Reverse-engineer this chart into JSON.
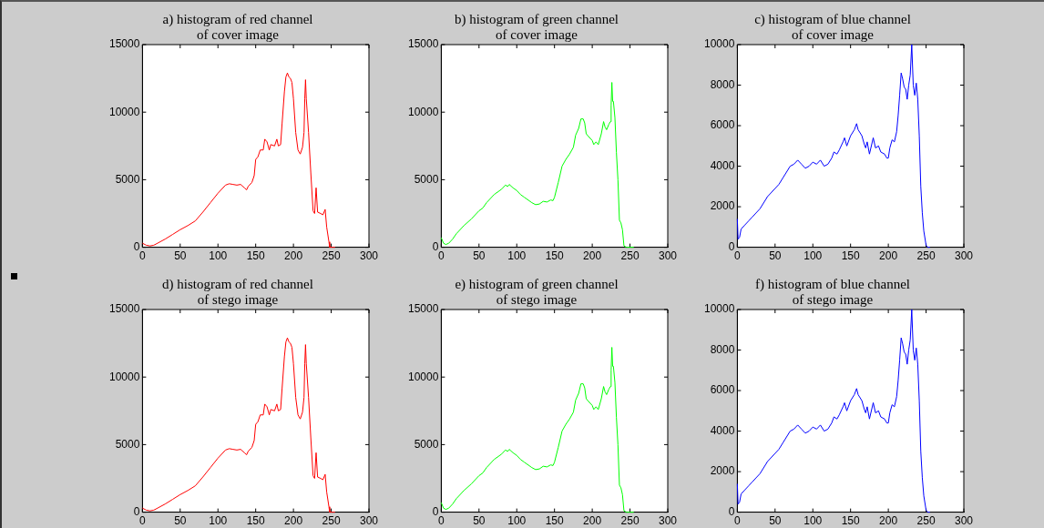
{
  "chart_data": [
    {
      "type": "line",
      "title": "a) histogram of red channel\nof cover image",
      "x": [
        0,
        5,
        10,
        15,
        20,
        30,
        40,
        50,
        60,
        70,
        80,
        90,
        100,
        110,
        115,
        120,
        125,
        130,
        135,
        138,
        140,
        145,
        148,
        150,
        153,
        156,
        160,
        162,
        165,
        168,
        170,
        175,
        178,
        180,
        183,
        185,
        188,
        190,
        192,
        194,
        196,
        198,
        200,
        203,
        206,
        209,
        212,
        214,
        215,
        216,
        217,
        220,
        223,
        226,
        228,
        230,
        232,
        236,
        239,
        242,
        244,
        247,
        248,
        252,
        255
      ],
      "series": [
        {
          "color": "#ff0000",
          "values": [
            300,
            150,
            100,
            150,
            300,
            600,
            950,
            1300,
            1600,
            1950,
            2600,
            3300,
            4000,
            4600,
            4700,
            4650,
            4600,
            4650,
            4400,
            4250,
            4500,
            4800,
            5300,
            6500,
            6700,
            7200,
            7200,
            8000,
            7800,
            7200,
            7600,
            7500,
            8000,
            7500,
            7600,
            9200,
            11500,
            12600,
            12900,
            12600,
            12500,
            12200,
            11000,
            8500,
            7200,
            6900,
            7400,
            8500,
            11000,
            12400,
            11000,
            8500,
            5500,
            2700,
            2500,
            4400,
            2600,
            2500,
            2400,
            2800,
            1500,
            400,
            0,
            0,
            0
          ]
        }
      ],
      "xlim": [
        0,
        300
      ],
      "xticks": [
        0,
        50,
        100,
        150,
        200,
        250,
        300
      ],
      "ylim": [
        0,
        15000
      ],
      "yticks": [
        0,
        5000,
        10000,
        15000
      ],
      "grid": false
    },
    {
      "type": "line",
      "title": "b) histogram of green channel\nof cover image",
      "x": [
        0,
        3,
        6,
        10,
        15,
        20,
        30,
        40,
        50,
        55,
        60,
        70,
        80,
        85,
        88,
        90,
        95,
        100,
        105,
        110,
        120,
        125,
        130,
        135,
        140,
        145,
        148,
        150,
        155,
        160,
        165,
        170,
        175,
        178,
        182,
        185,
        188,
        190,
        192,
        195,
        200,
        202,
        205,
        208,
        212,
        215,
        217,
        219,
        222,
        224,
        225,
        226,
        227,
        228,
        230,
        232,
        234,
        236,
        238,
        240,
        242,
        245,
        250,
        255
      ],
      "series": [
        {
          "color": "#00ff00",
          "values": [
            700,
            300,
            200,
            300,
            600,
            1000,
            1600,
            2100,
            2700,
            2900,
            3300,
            3900,
            4300,
            4600,
            4500,
            4650,
            4400,
            4200,
            3900,
            3700,
            3300,
            3150,
            3200,
            3400,
            3350,
            3500,
            3450,
            3700,
            4800,
            6000,
            6500,
            6900,
            7400,
            8300,
            8800,
            9500,
            9500,
            9200,
            8400,
            8200,
            7900,
            7600,
            7800,
            7600,
            8400,
            9300,
            8900,
            8700,
            9100,
            9300,
            10500,
            12200,
            10800,
            10800,
            9600,
            7000,
            5000,
            2000,
            1800,
            1300,
            100,
            0,
            0,
            0
          ]
        }
      ],
      "xlim": [
        0,
        300
      ],
      "xticks": [
        0,
        50,
        100,
        150,
        200,
        250,
        300
      ],
      "ylim": [
        0,
        15000
      ],
      "yticks": [
        0,
        5000,
        10000,
        15000
      ],
      "grid": false
    },
    {
      "type": "line",
      "title": "c) histogram of blue channel\nof cover image",
      "x": [
        0,
        1,
        3,
        5,
        10,
        15,
        20,
        30,
        40,
        50,
        55,
        60,
        70,
        75,
        80,
        85,
        90,
        95,
        100,
        105,
        110,
        115,
        120,
        125,
        128,
        132,
        135,
        140,
        142,
        145,
        150,
        155,
        158,
        160,
        165,
        168,
        170,
        172,
        175,
        180,
        183,
        187,
        190,
        195,
        198,
        200,
        202,
        205,
        208,
        211,
        213,
        215,
        217,
        219,
        221,
        223,
        225,
        227,
        229,
        231,
        233,
        235,
        237,
        239,
        241,
        243,
        245,
        247,
        250,
        252,
        255
      ],
      "series": [
        {
          "color": "#0000ff",
          "values": [
            1400,
            400,
            500,
            900,
            1100,
            1300,
            1500,
            1900,
            2500,
            2900,
            3100,
            3400,
            4000,
            4100,
            4300,
            4100,
            3900,
            4000,
            4200,
            4100,
            4300,
            4000,
            4100,
            4400,
            4700,
            4600,
            4800,
            5200,
            5400,
            5000,
            5500,
            5800,
            6100,
            5800,
            5500,
            5100,
            4900,
            5200,
            4600,
            5400,
            4900,
            5000,
            4700,
            4600,
            4400,
            4400,
            4900,
            5300,
            5200,
            5700,
            6500,
            7500,
            8600,
            8300,
            7900,
            7800,
            7300,
            8000,
            8500,
            10000,
            8000,
            7500,
            8100,
            7300,
            5500,
            3000,
            1700,
            800,
            100,
            0,
            0
          ]
        }
      ],
      "xlim": [
        0,
        300
      ],
      "xticks": [
        0,
        50,
        100,
        150,
        200,
        250,
        300
      ],
      "ylim": [
        0,
        10000
      ],
      "yticks": [
        0,
        2000,
        4000,
        6000,
        8000,
        10000
      ],
      "grid": false
    },
    {
      "type": "line",
      "title": "d) histogram of red channel\nof stego image",
      "x": [
        0,
        5,
        10,
        15,
        20,
        30,
        40,
        50,
        60,
        70,
        80,
        90,
        100,
        110,
        115,
        120,
        125,
        130,
        135,
        138,
        140,
        145,
        148,
        150,
        153,
        156,
        160,
        162,
        165,
        168,
        170,
        175,
        178,
        180,
        183,
        185,
        188,
        190,
        192,
        194,
        196,
        198,
        200,
        203,
        206,
        209,
        212,
        214,
        215,
        216,
        217,
        220,
        223,
        226,
        228,
        230,
        232,
        236,
        239,
        242,
        244,
        247,
        248,
        252,
        255
      ],
      "series": [
        {
          "color": "#ff0000",
          "values": [
            300,
            150,
            100,
            150,
            300,
            600,
            950,
            1300,
            1600,
            1950,
            2600,
            3300,
            4000,
            4600,
            4700,
            4650,
            4600,
            4650,
            4400,
            4250,
            4500,
            4800,
            5300,
            6500,
            6700,
            7200,
            7200,
            8000,
            7800,
            7200,
            7600,
            7500,
            8000,
            7500,
            7600,
            9200,
            11500,
            12600,
            12900,
            12600,
            12500,
            12200,
            11000,
            8500,
            7200,
            6900,
            7400,
            8500,
            11000,
            12400,
            11000,
            8500,
            5500,
            2700,
            2500,
            4400,
            2600,
            2500,
            2400,
            2800,
            1500,
            400,
            0,
            0,
            0
          ]
        }
      ],
      "xlim": [
        0,
        300
      ],
      "xticks": [
        0,
        50,
        100,
        150,
        200,
        250,
        300
      ],
      "ylim": [
        0,
        15000
      ],
      "yticks": [
        0,
        5000,
        10000,
        15000
      ],
      "grid": false
    },
    {
      "type": "line",
      "title": "e) histogram of green channel\nof stego image",
      "x": [
        0,
        3,
        6,
        10,
        15,
        20,
        30,
        40,
        50,
        55,
        60,
        70,
        80,
        85,
        88,
        90,
        95,
        100,
        105,
        110,
        120,
        125,
        130,
        135,
        140,
        145,
        148,
        150,
        155,
        160,
        165,
        170,
        175,
        178,
        182,
        185,
        188,
        190,
        192,
        195,
        200,
        202,
        205,
        208,
        212,
        215,
        217,
        219,
        222,
        224,
        225,
        226,
        227,
        228,
        230,
        232,
        234,
        236,
        238,
        240,
        242,
        245,
        250,
        255
      ],
      "series": [
        {
          "color": "#00ff00",
          "values": [
            700,
            300,
            200,
            300,
            600,
            1000,
            1600,
            2100,
            2700,
            2900,
            3300,
            3900,
            4300,
            4600,
            4500,
            4650,
            4400,
            4200,
            3900,
            3700,
            3300,
            3150,
            3200,
            3400,
            3350,
            3500,
            3450,
            3700,
            4800,
            6000,
            6500,
            6900,
            7400,
            8300,
            8800,
            9500,
            9500,
            9200,
            8400,
            8200,
            7900,
            7600,
            7800,
            7600,
            8400,
            9300,
            8900,
            8700,
            9100,
            9300,
            10500,
            12200,
            10800,
            10800,
            9600,
            7000,
            5000,
            2000,
            1800,
            1300,
            100,
            0,
            0,
            0
          ]
        }
      ],
      "xlim": [
        0,
        300
      ],
      "xticks": [
        0,
        50,
        100,
        150,
        200,
        250,
        300
      ],
      "ylim": [
        0,
        15000
      ],
      "yticks": [
        0,
        5000,
        10000,
        15000
      ],
      "grid": false
    },
    {
      "type": "line",
      "title": "f) histogram of blue channel\nof stego image",
      "x": [
        0,
        1,
        3,
        5,
        10,
        15,
        20,
        30,
        40,
        50,
        55,
        60,
        70,
        75,
        80,
        85,
        90,
        95,
        100,
        105,
        110,
        115,
        120,
        125,
        128,
        132,
        135,
        140,
        142,
        145,
        150,
        155,
        158,
        160,
        165,
        168,
        170,
        172,
        175,
        180,
        183,
        187,
        190,
        195,
        198,
        200,
        202,
        205,
        208,
        211,
        213,
        215,
        217,
        219,
        221,
        223,
        225,
        227,
        229,
        231,
        233,
        235,
        237,
        239,
        241,
        243,
        245,
        247,
        250,
        252,
        255
      ],
      "series": [
        {
          "color": "#0000ff",
          "values": [
            1400,
            400,
            500,
            900,
            1100,
            1300,
            1500,
            1900,
            2500,
            2900,
            3100,
            3400,
            4000,
            4100,
            4300,
            4100,
            3900,
            4000,
            4200,
            4100,
            4300,
            4000,
            4100,
            4400,
            4700,
            4600,
            4800,
            5200,
            5400,
            5000,
            5500,
            5800,
            6100,
            5800,
            5500,
            5100,
            4900,
            5200,
            4600,
            5400,
            4900,
            5000,
            4700,
            4600,
            4400,
            4400,
            4900,
            5300,
            5200,
            5700,
            6500,
            7500,
            8600,
            8300,
            7900,
            7800,
            7300,
            8000,
            8500,
            10000,
            8000,
            7500,
            8100,
            7300,
            5500,
            3000,
            1700,
            800,
            100,
            0,
            0
          ]
        }
      ],
      "xlim": [
        0,
        300
      ],
      "xticks": [
        0,
        50,
        100,
        150,
        200,
        250,
        300
      ],
      "ylim": [
        0,
        10000
      ],
      "yticks": [
        0,
        2000,
        4000,
        6000,
        8000,
        10000
      ],
      "grid": false
    }
  ]
}
